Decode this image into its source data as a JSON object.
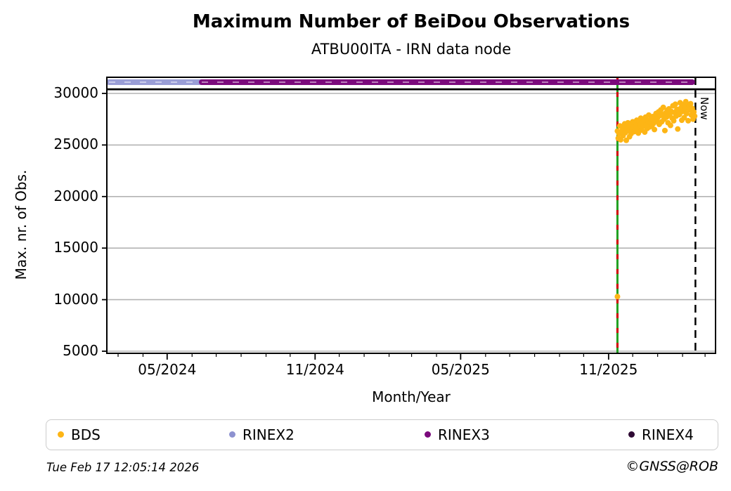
{
  "title": "Maximum Number of BeiDou Observations",
  "subtitle": "ATBU00ITA - IRN data node",
  "footer": {
    "timestamp": "Tue Feb 17 12:05:14 2026",
    "copyright": "©GNSS@ROB"
  },
  "legend": [
    {
      "label": "BDS",
      "color": "#fdb515"
    },
    {
      "label": "RINEX2",
      "color": "#8d92d0"
    },
    {
      "label": "RINEX3",
      "color": "#7b0a7c"
    },
    {
      "label": "RINEX4",
      "color": "#2e0a33"
    }
  ],
  "chart_data": {
    "type": "scatter",
    "title": "Maximum Number of BeiDou Observations",
    "subtitle": "ATBU00ITA - IRN data node",
    "xlabel": "Month/Year",
    "ylabel": "Max. nr. of Obs.",
    "ylim": [
      4800,
      31570
    ],
    "yticks": [
      5000,
      10000,
      15000,
      20000,
      25000,
      30000
    ],
    "x_range": [
      "2024-02-16",
      "2026-03-14"
    ],
    "xticks": [
      {
        "label": "05/2024",
        "date": "2024-05-01"
      },
      {
        "label": "11/2024",
        "date": "2024-11-01"
      },
      {
        "label": "05/2025",
        "date": "2025-05-01"
      },
      {
        "label": "11/2025",
        "date": "2025-11-01"
      }
    ],
    "grid": "horizontal",
    "grid_color": "#b3b3b3",
    "separator_line": {
      "value": 30400,
      "color": "#000000"
    },
    "availability_bars": [
      {
        "name": "RINEX2",
        "start": "2024-02-16",
        "end": "2024-06-13",
        "value": 31090,
        "color": "#9a9ed6"
      },
      {
        "name": "RINEX3",
        "start": "2024-06-13",
        "end": "2026-02-13",
        "value": 31090,
        "color": "#7b0a7c"
      }
    ],
    "event_line": {
      "date": "2025-11-12",
      "color_solid": "#1fa01f",
      "color_dash": "#d40000"
    },
    "now_line": {
      "date": "2026-02-17",
      "label": "Now",
      "color": "#000000",
      "style": "dashed"
    },
    "series": [
      {
        "name": "BDS",
        "color": "#fdb515",
        "start_date": "2025-11-12",
        "points_as": [
          "day_offset",
          "max_obs"
        ],
        "points": [
          [
            0,
            10300
          ],
          [
            0,
            26350
          ],
          [
            1,
            25650
          ],
          [
            2,
            26100
          ],
          [
            3,
            26850
          ],
          [
            4,
            25500
          ],
          [
            5,
            26300
          ],
          [
            6,
            26700
          ],
          [
            7,
            25900
          ],
          [
            8,
            26500
          ],
          [
            9,
            27050
          ],
          [
            10,
            26200
          ],
          [
            11,
            25450
          ],
          [
            12,
            26650
          ],
          [
            13,
            27150
          ],
          [
            14,
            26400
          ],
          [
            15,
            25800
          ],
          [
            16,
            26900
          ],
          [
            17,
            26100
          ],
          [
            18,
            26550
          ],
          [
            19,
            27250
          ],
          [
            20,
            26700
          ],
          [
            21,
            26300
          ],
          [
            22,
            27100
          ],
          [
            23,
            26850
          ],
          [
            24,
            27400
          ],
          [
            25,
            26600
          ],
          [
            26,
            26150
          ],
          [
            27,
            27300
          ],
          [
            28,
            26950
          ],
          [
            29,
            27600
          ],
          [
            30,
            26450
          ],
          [
            31,
            27150
          ],
          [
            32,
            26800
          ],
          [
            33,
            27450
          ],
          [
            34,
            26250
          ],
          [
            35,
            27700
          ],
          [
            36,
            27050
          ],
          [
            37,
            26600
          ],
          [
            38,
            27350
          ],
          [
            39,
            27900
          ],
          [
            40,
            26750
          ],
          [
            41,
            27200
          ],
          [
            42,
            27550
          ],
          [
            43,
            26900
          ],
          [
            44,
            27750
          ],
          [
            45,
            27100
          ],
          [
            46,
            26500
          ],
          [
            47,
            27400
          ],
          [
            48,
            28050
          ],
          [
            49,
            27300
          ],
          [
            50,
            27650
          ],
          [
            51,
            28200
          ],
          [
            52,
            27000
          ],
          [
            53,
            27850
          ],
          [
            54,
            28400
          ],
          [
            55,
            27250
          ],
          [
            56,
            27950
          ],
          [
            57,
            28650
          ],
          [
            58,
            27500
          ],
          [
            59,
            26400
          ],
          [
            60,
            28100
          ],
          [
            61,
            27700
          ],
          [
            62,
            28350
          ],
          [
            63,
            27150
          ],
          [
            64,
            28500
          ],
          [
            65,
            27900
          ],
          [
            66,
            26900
          ],
          [
            67,
            28250
          ],
          [
            68,
            27600
          ],
          [
            69,
            28800
          ],
          [
            70,
            27350
          ],
          [
            71,
            28150
          ],
          [
            72,
            28950
          ],
          [
            73,
            27800
          ],
          [
            74,
            28450
          ],
          [
            75,
            26550
          ],
          [
            76,
            28300
          ],
          [
            77,
            27950
          ],
          [
            78,
            29100
          ],
          [
            79,
            28600
          ],
          [
            80,
            27400
          ],
          [
            81,
            28250
          ],
          [
            82,
            28900
          ],
          [
            83,
            27650
          ],
          [
            84,
            28500
          ],
          [
            85,
            29200
          ],
          [
            86,
            28050
          ],
          [
            87,
            28700
          ],
          [
            88,
            27350
          ],
          [
            89,
            28850
          ],
          [
            90,
            28400
          ],
          [
            91,
            29000
          ],
          [
            92,
            27900
          ],
          [
            93,
            28550
          ],
          [
            94,
            27500
          ],
          [
            95,
            28200
          ],
          [
            96,
            27800
          ]
        ]
      }
    ]
  }
}
